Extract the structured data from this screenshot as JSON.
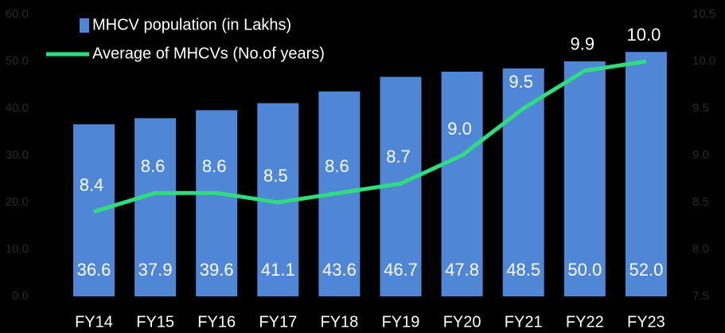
{
  "chart_data": {
    "type": "bar_line",
    "categories": [
      "FY14",
      "FY15",
      "FY16",
      "FY17",
      "FY18",
      "FY19",
      "FY20",
      "FY21",
      "FY22",
      "FY23"
    ],
    "series": [
      {
        "name": "MHCV population (in Lakhs)",
        "type": "bar",
        "color": "#4f86d6",
        "values": [
          36.6,
          37.9,
          39.6,
          41.1,
          43.6,
          46.7,
          47.8,
          48.5,
          50.0,
          52.0
        ],
        "value_labels": [
          "36.6",
          "37.9",
          "39.6",
          "41.1",
          "43.6",
          "46.7",
          "47.8",
          "48.5",
          "50.0",
          "52.0"
        ]
      },
      {
        "name": "Average of MHCVs (No.of years)",
        "type": "line",
        "axis": "y2",
        "color": "#2fdc7e",
        "values": [
          8.4,
          8.6,
          8.6,
          8.5,
          8.6,
          8.7,
          9.0,
          9.5,
          9.9,
          10.0
        ],
        "value_labels": [
          "8.4",
          "8.6",
          "8.6",
          "8.5",
          "8.6",
          "8.7",
          "9.0",
          "9.5",
          "9.9",
          "10.0"
        ]
      }
    ],
    "ylim": [
      0,
      60
    ],
    "yticks": [
      {
        "value": 0,
        "label": "0.0"
      },
      {
        "value": 10,
        "label": "10.0"
      },
      {
        "value": 20,
        "label": "20.0"
      },
      {
        "value": 30,
        "label": "30.0"
      },
      {
        "value": 40,
        "label": "40.0"
      },
      {
        "value": 50,
        "label": "50.0"
      },
      {
        "value": 60,
        "label": "60.0"
      }
    ],
    "y2lim": [
      7.5,
      10.5
    ],
    "y2ticks": [
      7.5,
      {
        "value": 8,
        "label": "8.0"
      },
      8.5,
      {
        "value": 9,
        "label": "9.0"
      },
      9.5,
      {
        "value": 10,
        "label": "10.0"
      },
      10.5
    ]
  }
}
